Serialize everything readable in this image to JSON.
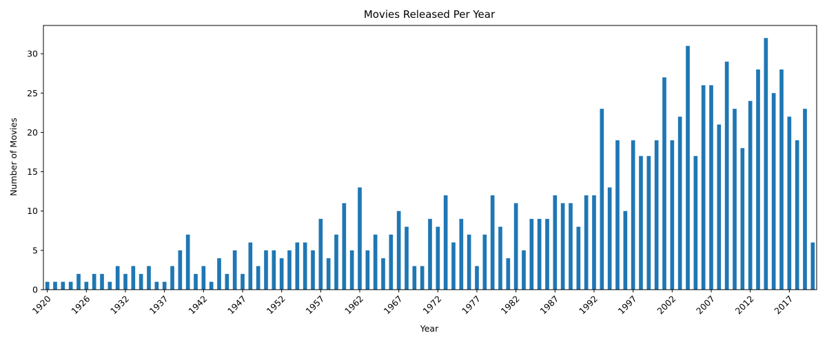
{
  "chart_data": {
    "type": "bar",
    "title": "Movies Released Per Year",
    "xlabel": "Year",
    "ylabel": "Number of Movies",
    "ylim": [
      0,
      33.6
    ],
    "yticks": [
      0,
      5,
      10,
      15,
      20,
      25,
      30
    ],
    "grid": false,
    "legend": "none",
    "bar_color": "#1f77b4",
    "xtick_labels": [
      "1920",
      "1926",
      "1932",
      "1937",
      "1942",
      "1947",
      "1952",
      "1957",
      "1962",
      "1967",
      "1972",
      "1977",
      "1982",
      "1987",
      "1992",
      "1997",
      "2002",
      "2007",
      "2012",
      "2017"
    ],
    "categories": [
      1920,
      1921,
      1922,
      1923,
      1924,
      1926,
      1927,
      1928,
      1929,
      1931,
      1932,
      1933,
      1934,
      1935,
      1936,
      1937,
      1938,
      1939,
      1940,
      1941,
      1942,
      1943,
      1944,
      1945,
      1946,
      1947,
      1948,
      1949,
      1950,
      1951,
      1952,
      1953,
      1954,
      1955,
      1956,
      1957,
      1958,
      1959,
      1960,
      1961,
      1962,
      1963,
      1964,
      1965,
      1966,
      1967,
      1968,
      1969,
      1970,
      1971,
      1972,
      1973,
      1974,
      1975,
      1976,
      1977,
      1978,
      1979,
      1980,
      1981,
      1982,
      1983,
      1984,
      1985,
      1986,
      1987,
      1988,
      1989,
      1990,
      1991,
      1992,
      1993,
      1994,
      1995,
      1996,
      1997,
      1998,
      1999,
      2000,
      2001,
      2002,
      2003,
      2004,
      2005,
      2006,
      2007,
      2008,
      2009,
      2010,
      2011,
      2012,
      2013,
      2014,
      2015,
      2016,
      2017,
      2018,
      2019,
      2020
    ],
    "values": [
      1,
      1,
      1,
      1,
      2,
      1,
      2,
      2,
      1,
      3,
      2,
      3,
      2,
      3,
      1,
      1,
      3,
      5,
      7,
      2,
      3,
      1,
      4,
      2,
      5,
      2,
      6,
      3,
      5,
      5,
      4,
      5,
      6,
      6,
      5,
      9,
      4,
      7,
      11,
      5,
      13,
      5,
      7,
      4,
      7,
      10,
      8,
      3,
      3,
      9,
      8,
      12,
      6,
      9,
      7,
      3,
      7,
      12,
      8,
      4,
      11,
      5,
      9,
      9,
      9,
      12,
      11,
      11,
      8,
      12,
      12,
      23,
      13,
      19,
      10,
      19,
      17,
      17,
      19,
      27,
      19,
      22,
      31,
      17,
      26,
      26,
      21,
      29,
      23,
      18,
      24,
      28,
      32,
      25,
      28,
      22,
      19,
      23,
      6
    ]
  }
}
